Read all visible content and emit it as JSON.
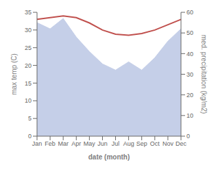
{
  "chart_data": {
    "type": "line",
    "categories": [
      "Jan",
      "Feb",
      "Mar",
      "Apr",
      "May",
      "Jun",
      "Jul",
      "Aug",
      "Sep",
      "Oct",
      "Nov",
      "Dec"
    ],
    "series": [
      {
        "type": "area",
        "axis": "y2",
        "color": "#c5cfe8",
        "values": [
          55,
          52,
          57,
          48,
          41,
          35,
          32,
          36,
          32,
          38,
          46,
          52
        ]
      },
      {
        "type": "line",
        "color": "#c0504d",
        "values": [
          33.0,
          33.5,
          34.0,
          33.5,
          32.0,
          30.0,
          28.8,
          28.5,
          29.0,
          30.0,
          31.5,
          33.0
        ]
      }
    ],
    "xlabel": "date (month)",
    "ylabel": "max temp (C)",
    "y2label": "med. precipitation (kg/m2)",
    "ylim": [
      0,
      35
    ],
    "yticks": [
      0,
      5,
      10,
      15,
      20,
      25,
      30,
      35
    ],
    "y2lim": [
      0,
      60
    ],
    "y2ticks": [
      0,
      10,
      20,
      30,
      40,
      50,
      60
    ],
    "grid": false
  }
}
